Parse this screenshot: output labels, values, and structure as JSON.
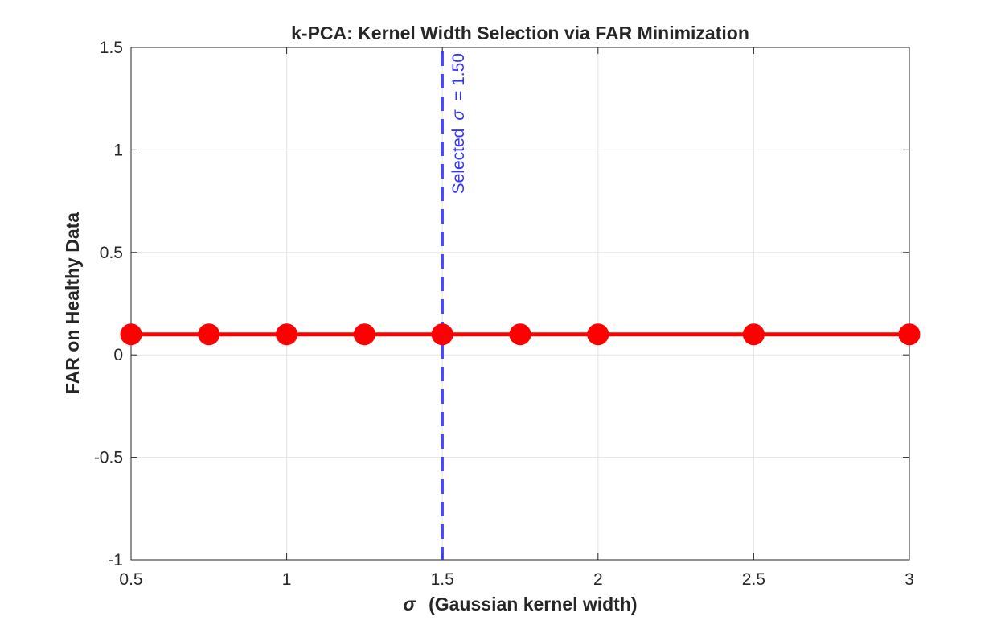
{
  "chart_data": {
    "type": "line",
    "title": "k-PCA: Kernel Width Selection via FAR Minimization",
    "xlabel_symbol": "σ",
    "xlabel_text": "(Gaussian  kernel  width)",
    "ylabel": "FAR on Healthy Data",
    "xlim": [
      0.5,
      3
    ],
    "ylim": [
      -1,
      1.5
    ],
    "x_ticks": [
      0.5,
      1,
      1.5,
      2,
      2.5,
      3
    ],
    "x_tick_labels": [
      "0.5",
      "1",
      "1.5",
      "2",
      "2.5",
      "3"
    ],
    "y_ticks": [
      -1,
      -0.5,
      0,
      0.5,
      1,
      1.5
    ],
    "y_tick_labels": [
      "-1",
      "-0.5",
      "0",
      "0.5",
      "1",
      "1.5"
    ],
    "grid": true,
    "series": [
      {
        "x": [
          0.5,
          0.75,
          1.0,
          1.25,
          1.5,
          1.75,
          2.0,
          2.5,
          3.0
        ],
        "y": [
          0.1,
          0.1,
          0.1,
          0.1,
          0.1,
          0.1,
          0.1,
          0.1,
          0.1
        ],
        "color": "#ff0000",
        "marker": "circle"
      }
    ],
    "selected_line": {
      "x": 1.5,
      "color": "#3333ff",
      "style": "dashed",
      "label_prefix": "Selected",
      "label_symbol": "σ",
      "label_suffix": "=  1.50"
    }
  }
}
